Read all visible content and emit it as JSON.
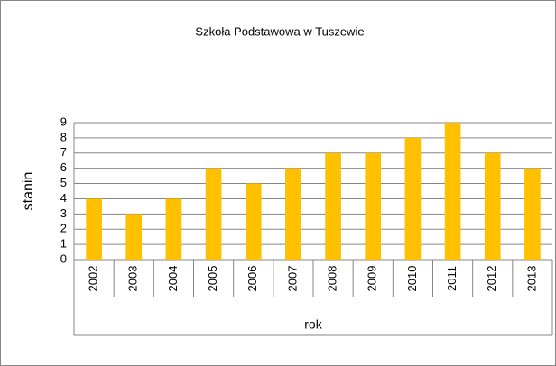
{
  "chart_data": {
    "type": "bar",
    "title": "Szkoła Podstawowa w Tuszewie",
    "x_label": "rok",
    "y_label": "stanin",
    "categories": [
      "2002",
      "2003",
      "2004",
      "2005",
      "2006",
      "2007",
      "2008",
      "2009",
      "2010",
      "2011",
      "2012",
      "2013"
    ],
    "values": [
      4,
      3,
      4,
      6,
      5,
      6,
      7,
      7,
      8,
      9,
      7,
      6
    ],
    "color": "#FFC000",
    "ylim": [
      0,
      9
    ],
    "yticks": [
      0,
      1,
      2,
      3,
      4,
      5,
      6,
      7,
      8,
      9
    ],
    "grid": true
  }
}
